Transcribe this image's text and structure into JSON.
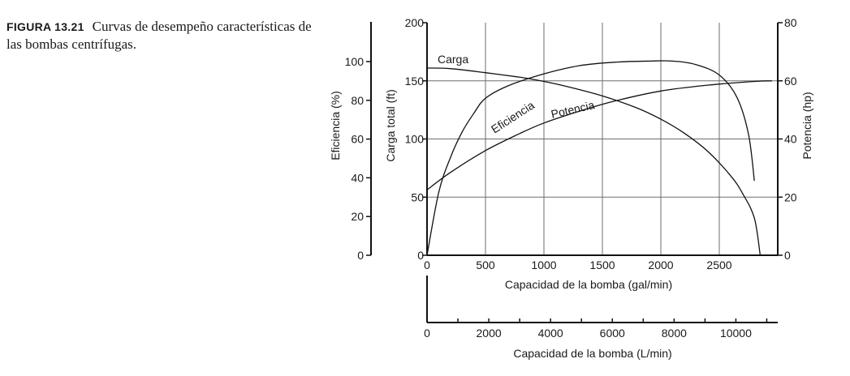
{
  "figure": {
    "label": "FIGURA 13.21",
    "caption": "Curvas de desempeño características de las bombas centrífugas."
  },
  "chart_data": {
    "type": "line",
    "title": "",
    "xlabel": "Capacidad de la bomba (gal/min)",
    "xlim": [
      0,
      3000
    ],
    "x_ticks": [
      0,
      500,
      1000,
      1500,
      2000,
      2500
    ],
    "x_tick_labels": [
      "0",
      "500",
      "1000",
      "1500",
      "2000",
      "2500"
    ],
    "secondary_xlabel": "Capacidad de la bomba (L/min)",
    "secondary_xlim": [
      0,
      11356
    ],
    "secondary_x_ticks": [
      0,
      2000,
      4000,
      6000,
      8000,
      10000
    ],
    "secondary_x_tick_labels": [
      "0",
      "2000",
      "4000",
      "6000",
      "8000",
      "10000"
    ],
    "y_axes": [
      {
        "id": "head",
        "label": "Carga total (ft)",
        "ylim": [
          0,
          200
        ],
        "ticks": [
          0,
          50,
          100,
          150,
          200
        ],
        "tick_labels": [
          "0",
          "50",
          "100",
          "150",
          "200"
        ]
      },
      {
        "id": "efficiency",
        "label": "Eficiencia (%)",
        "ylim": [
          0,
          100
        ],
        "ticks": [
          0,
          20,
          40,
          60,
          80,
          100
        ],
        "tick_labels": [
          "0",
          "20",
          "40",
          "60",
          "80",
          "100"
        ]
      },
      {
        "id": "power",
        "label": "Potencia (hp)",
        "ylim": [
          0,
          80
        ],
        "ticks": [
          0,
          20,
          40,
          60,
          80
        ],
        "tick_labels": [
          "0",
          "20",
          "40",
          "60",
          "80"
        ]
      }
    ],
    "grid": true,
    "series": [
      {
        "name": "Carga",
        "axis": "head",
        "x": [
          0,
          200,
          500,
          800,
          1000,
          1200,
          1500,
          1800,
          2000,
          2200,
          2400,
          2600,
          2700,
          2800,
          2850
        ],
        "y": [
          161,
          160.5,
          157,
          153,
          149.5,
          145,
          137,
          126.5,
          117,
          105,
          89.5,
          68,
          53,
          32,
          0
        ]
      },
      {
        "name": "Eficiencia",
        "axis": "efficiency",
        "x": [
          0,
          100,
          200,
          300,
          400,
          500,
          700,
          1000,
          1300,
          1600,
          1900,
          2100,
          2300,
          2500,
          2650,
          2750,
          2800
        ],
        "y": [
          0,
          27,
          42,
          53,
          61,
          67.5,
          73,
          78,
          81.5,
          83,
          83.5,
          83.5,
          82,
          77.5,
          68,
          52,
          32
        ]
      },
      {
        "name": "Potencia",
        "axis": "power",
        "x": [
          0,
          200,
          500,
          800,
          1000,
          1300,
          1600,
          2000,
          2400,
          2800,
          2950
        ],
        "y": [
          22.5,
          28.5,
          36,
          42,
          45.5,
          49.5,
          53,
          56.5,
          58.5,
          59.8,
          60
        ]
      }
    ],
    "annotations": [
      "Carga",
      "Eficiencia",
      "Potencia"
    ]
  }
}
